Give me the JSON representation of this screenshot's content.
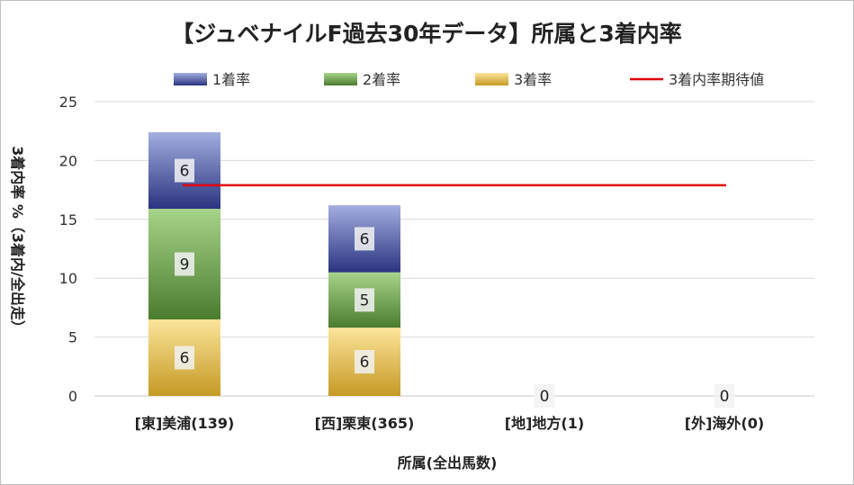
{
  "chart_data": {
    "type": "bar",
    "stacked": true,
    "title": "【ジュベナイルF過去30年データ】所属と3着内率",
    "xlabel": "所属(全出馬数)",
    "ylabel": "3着内率 %（3着内/全出走）",
    "ylim": [
      0,
      25
    ],
    "yticks": [
      0,
      5,
      10,
      15,
      20,
      25
    ],
    "grid": true,
    "legend_position": "top",
    "categories": [
      "[東]美浦(139)",
      "[西]栗東(365)",
      "[地]地方(1)",
      "[外]海外(0)"
    ],
    "series": [
      {
        "name": "3着率",
        "values": [
          6.5,
          5.8,
          0,
          0
        ],
        "labels": [
          "6",
          "6",
          "0",
          "0"
        ],
        "color_top": "#fce49a",
        "color_bottom": "#c59a25"
      },
      {
        "name": "2着率",
        "values": [
          9.4,
          4.7,
          0,
          0
        ],
        "labels": [
          "9",
          "5",
          "",
          ""
        ],
        "color_top": "#a6d48a",
        "color_bottom": "#4b7c2e"
      },
      {
        "name": "1着率",
        "values": [
          6.5,
          5.7,
          0,
          0
        ],
        "labels": [
          "6",
          "6",
          "",
          ""
        ],
        "color_top": "#a3aee0",
        "color_bottom": "#2a3480"
      }
    ],
    "reference_line": {
      "name": "3着内率期待値",
      "value": 17.9,
      "color": "#e00000"
    }
  }
}
